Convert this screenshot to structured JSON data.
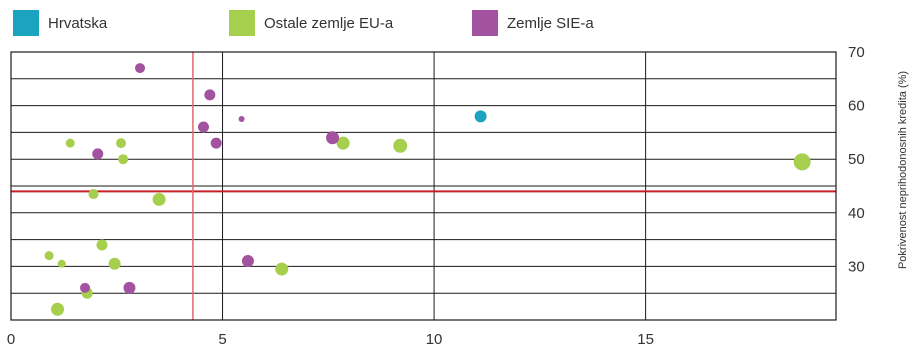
{
  "chart_data": {
    "type": "scatter",
    "ylabel": "Pokrivenost neprihodonosnih kredita (%)",
    "xlim": [
      0,
      19.5
    ],
    "ylim": [
      20,
      70
    ],
    "x_ticks": [
      "0",
      "5",
      "10",
      "15"
    ],
    "y_ticks": [
      "30",
      "40",
      "50",
      "60",
      "70"
    ],
    "grid": true,
    "legend_position": "top",
    "reference_lines": {
      "vertical_x": 4.3,
      "horizontal_y": 44
    },
    "series": [
      {
        "name": "Hrvatska",
        "color": "#1ba3bf",
        "points": [
          {
            "x": 11.1,
            "y": 58,
            "size": 6
          }
        ]
      },
      {
        "name": "Ostale zemlje EU-a",
        "color": "#a6cf4d",
        "points": [
          {
            "x": 1.4,
            "y": 53,
            "size": 4.5
          },
          {
            "x": 2.6,
            "y": 53,
            "size": 5
          },
          {
            "x": 2.65,
            "y": 50,
            "size": 5
          },
          {
            "x": 7.85,
            "y": 53,
            "size": 6.5
          },
          {
            "x": 9.2,
            "y": 52.5,
            "size": 7
          },
          {
            "x": 18.7,
            "y": 49.5,
            "size": 8.5
          },
          {
            "x": 1.95,
            "y": 43.5,
            "size": 5
          },
          {
            "x": 3.5,
            "y": 42.5,
            "size": 6.5
          },
          {
            "x": 2.15,
            "y": 34,
            "size": 5.5
          },
          {
            "x": 0.9,
            "y": 32,
            "size": 4.5
          },
          {
            "x": 1.2,
            "y": 30.5,
            "size": 4
          },
          {
            "x": 2.45,
            "y": 30.5,
            "size": 6
          },
          {
            "x": 6.4,
            "y": 29.5,
            "size": 6.5
          },
          {
            "x": 1.8,
            "y": 25,
            "size": 5.5
          },
          {
            "x": 1.1,
            "y": 22,
            "size": 6.5
          }
        ]
      },
      {
        "name": "Zemlje SIE-a",
        "color": "#a2529f",
        "points": [
          {
            "x": 3.05,
            "y": 67,
            "size": 5
          },
          {
            "x": 4.7,
            "y": 62,
            "size": 5.5
          },
          {
            "x": 5.45,
            "y": 57.5,
            "size": 3
          },
          {
            "x": 4.55,
            "y": 56,
            "size": 5.5
          },
          {
            "x": 4.85,
            "y": 53,
            "size": 5.5
          },
          {
            "x": 7.6,
            "y": 54,
            "size": 6.5
          },
          {
            "x": 2.05,
            "y": 51,
            "size": 5.5
          },
          {
            "x": 5.6,
            "y": 31,
            "size": 6
          },
          {
            "x": 1.75,
            "y": 26,
            "size": 5
          },
          {
            "x": 2.8,
            "y": 26,
            "size": 6
          }
        ]
      }
    ]
  }
}
